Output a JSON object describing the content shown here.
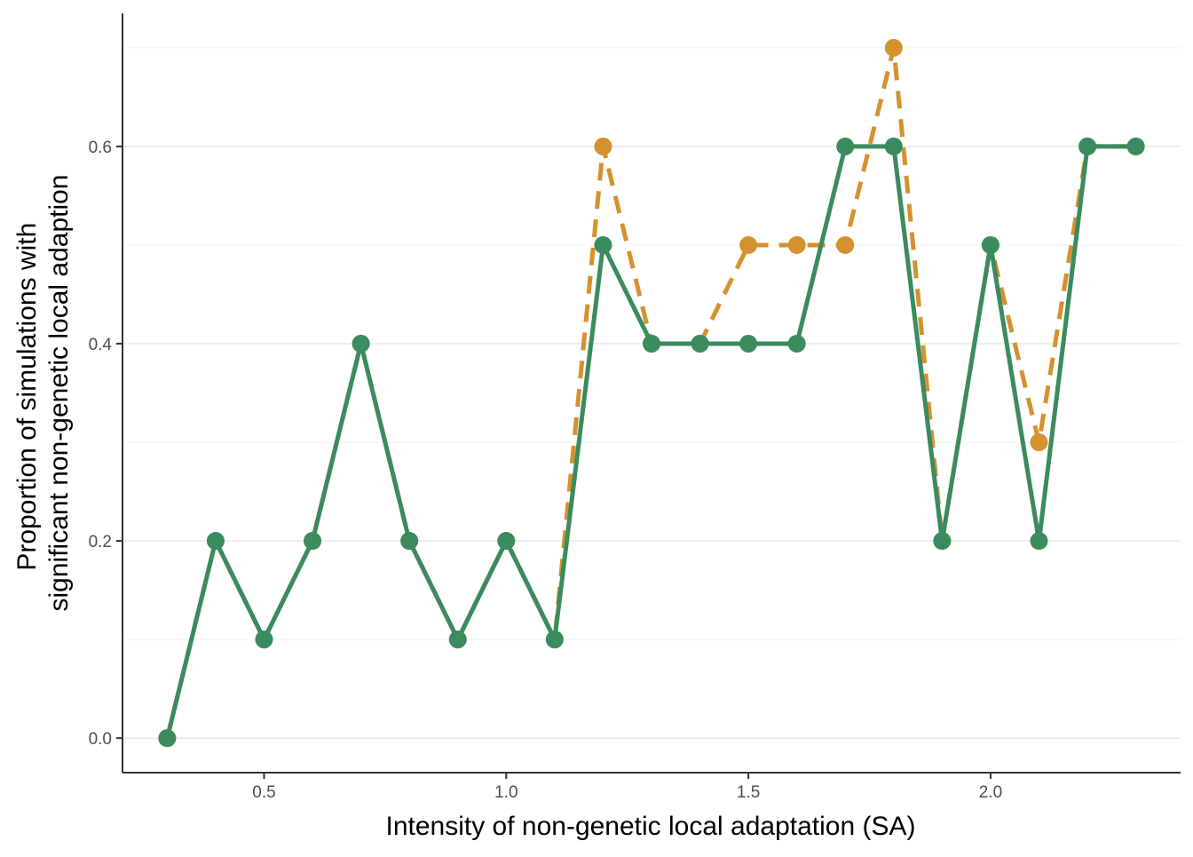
{
  "chart_data": {
    "type": "line",
    "title": "",
    "xlabel": "Intensity of non-genetic local adaptation (SA)",
    "ylabel_lines": [
      "Proportion of simulations with",
      "significant non-genetic local adaption"
    ],
    "x_ticks": [
      "0.5",
      "1.0",
      "1.5",
      "2.0"
    ],
    "x_tick_values": [
      0.5,
      1.0,
      1.5,
      2.0
    ],
    "y_ticks": [
      "0.0",
      "0.2",
      "0.4",
      "0.6"
    ],
    "y_tick_values": [
      0.0,
      0.2,
      0.4,
      0.6
    ],
    "xlim": [
      0.2077,
      2.3923
    ],
    "ylim": [
      -0.035,
      0.735
    ],
    "grid": "horizontal",
    "legend": "none",
    "x": [
      0.3,
      0.4,
      0.5,
      0.6,
      0.7,
      0.8,
      0.9,
      1.0,
      1.1,
      1.2,
      1.3,
      1.4,
      1.5,
      1.6,
      1.7,
      1.8,
      1.9,
      2.0,
      2.1,
      2.2,
      2.3
    ],
    "series": [
      {
        "color": "#D4922E",
        "line_style": "dashed",
        "values": [
          0.0,
          0.2,
          0.1,
          0.2,
          0.4,
          0.2,
          0.1,
          0.2,
          0.1,
          0.6,
          0.4,
          0.4,
          0.5,
          0.5,
          0.5,
          0.7,
          0.2,
          0.5,
          0.3,
          0.6,
          0.6
        ]
      },
      {
        "color": "#3A8B5E",
        "line_style": "solid",
        "values": [
          0.0,
          0.2,
          0.1,
          0.2,
          0.4,
          0.2,
          0.1,
          0.2,
          0.1,
          0.5,
          0.4,
          0.4,
          0.4,
          0.4,
          0.6,
          0.6,
          0.2,
          0.5,
          0.2,
          0.6,
          0.6
        ]
      }
    ]
  }
}
